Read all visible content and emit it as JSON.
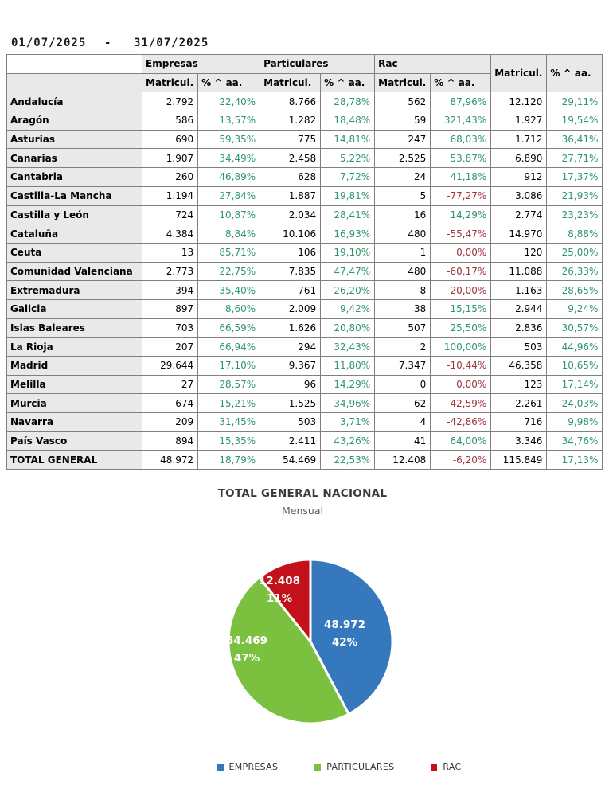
{
  "report": {
    "date_start": "01/07/2025",
    "date_separator": "-",
    "date_end": "31/07/2025"
  },
  "table": {
    "group_headers": [
      "Empresas",
      "Particulares",
      "Rac"
    ],
    "subheader": {
      "matricul": "Matricul.",
      "pct": "% ^ aa."
    },
    "rows": [
      {
        "name": "Andalucía",
        "cells": [
          "2.792",
          "22,40%",
          "8.766",
          "28,78%",
          "562",
          "87,96%",
          "12.120",
          "29,11%"
        ]
      },
      {
        "name": "Aragón",
        "cells": [
          "586",
          "13,57%",
          "1.282",
          "18,48%",
          "59",
          "321,43%",
          "1.927",
          "19,54%"
        ]
      },
      {
        "name": "Asturias",
        "cells": [
          "690",
          "59,35%",
          "775",
          "14,81%",
          "247",
          "68,03%",
          "1.712",
          "36,41%"
        ]
      },
      {
        "name": "Canarias",
        "cells": [
          "1.907",
          "34,49%",
          "2.458",
          "5,22%",
          "2.525",
          "53,87%",
          "6.890",
          "27,71%"
        ]
      },
      {
        "name": "Cantabria",
        "cells": [
          "260",
          "46,89%",
          "628",
          "7,72%",
          "24",
          "41,18%",
          "912",
          "17,37%"
        ]
      },
      {
        "name": "Castilla-La Mancha",
        "cells": [
          "1.194",
          "27,84%",
          "1.887",
          "19,81%",
          "5",
          "-77,27%",
          "3.086",
          "21,93%"
        ]
      },
      {
        "name": "Castilla y León",
        "cells": [
          "724",
          "10,87%",
          "2.034",
          "28,41%",
          "16",
          "14,29%",
          "2.774",
          "23,23%"
        ]
      },
      {
        "name": "Cataluña",
        "cells": [
          "4.384",
          "8,84%",
          "10.106",
          "16,93%",
          "480",
          "-55,47%",
          "14.970",
          "8,88%"
        ]
      },
      {
        "name": "Ceuta",
        "cells": [
          "13",
          "85,71%",
          "106",
          "19,10%",
          "1",
          "0,00%",
          "120",
          "25,00%"
        ]
      },
      {
        "name": "Comunidad Valenciana",
        "cells": [
          "2.773",
          "22,75%",
          "7.835",
          "47,47%",
          "480",
          "-60,17%",
          "11.088",
          "26,33%"
        ]
      },
      {
        "name": "Extremadura",
        "cells": [
          "394",
          "35,40%",
          "761",
          "26,20%",
          "8",
          "-20,00%",
          "1.163",
          "28,65%"
        ]
      },
      {
        "name": "Galicia",
        "cells": [
          "897",
          "8,60%",
          "2.009",
          "9,42%",
          "38",
          "15,15%",
          "2.944",
          "9,24%"
        ]
      },
      {
        "name": "Islas Baleares",
        "cells": [
          "703",
          "66,59%",
          "1.626",
          "20,80%",
          "507",
          "25,50%",
          "2.836",
          "30,57%"
        ]
      },
      {
        "name": "La Rioja",
        "cells": [
          "207",
          "66,94%",
          "294",
          "32,43%",
          "2",
          "100,00%",
          "503",
          "44,96%"
        ]
      },
      {
        "name": "Madrid",
        "cells": [
          "29.644",
          "17,10%",
          "9.367",
          "11,80%",
          "7.347",
          "-10,44%",
          "46.358",
          "10,65%"
        ]
      },
      {
        "name": "Melilla",
        "cells": [
          "27",
          "28,57%",
          "96",
          "14,29%",
          "0",
          "0,00%",
          "123",
          "17,14%"
        ]
      },
      {
        "name": "Murcia",
        "cells": [
          "674",
          "15,21%",
          "1.525",
          "34,96%",
          "62",
          "-42,59%",
          "2.261",
          "24,03%"
        ]
      },
      {
        "name": "Navarra",
        "cells": [
          "209",
          "31,45%",
          "503",
          "3,71%",
          "4",
          "-42,86%",
          "716",
          "9,98%"
        ]
      },
      {
        "name": "País Vasco",
        "cells": [
          "894",
          "15,35%",
          "2.411",
          "43,26%",
          "41",
          "64,00%",
          "3.346",
          "34,76%"
        ]
      },
      {
        "name": "TOTAL GENERAL",
        "cells": [
          "48.972",
          "18,79%",
          "54.469",
          "22,53%",
          "12.408",
          "-6,20%",
          "115.849",
          "17,13%"
        ]
      }
    ]
  },
  "chart": {
    "title": "TOTAL GENERAL NACIONAL",
    "subtitle": "Mensual"
  },
  "chart_data": {
    "type": "pie",
    "title": "TOTAL GENERAL NACIONAL",
    "subtitle": "Mensual",
    "categories": [
      "EMPRESAS",
      "PARTICULARES",
      "RAC"
    ],
    "values": [
      48972,
      54469,
      12408
    ],
    "value_labels": [
      "48.972",
      "54.469",
      "12.408"
    ],
    "percent_labels": [
      "42%",
      "47%",
      "11%"
    ],
    "colors": [
      "#3578BE",
      "#7CC03F",
      "#C3111B"
    ],
    "start_angle_deg": 0,
    "direction": "clockwise",
    "legend_position": "bottom"
  },
  "colors": {
    "positive_pct": "#2E9768",
    "negative_pct": "#A03540",
    "header_bg": "#E9E9E9",
    "grid_border": "#808080"
  }
}
